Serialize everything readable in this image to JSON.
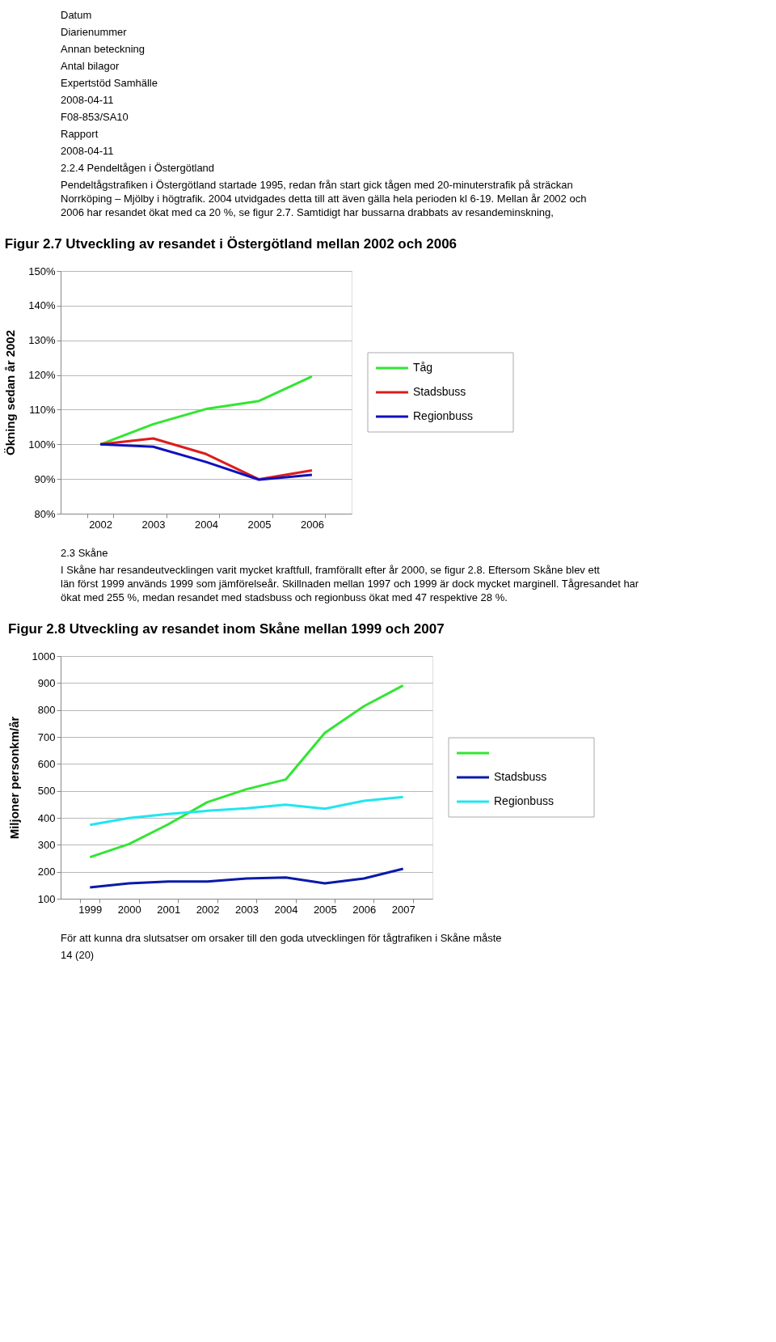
{
  "chart_data": [
    {
      "type": "line",
      "title": "Figur 2.7 Utveckling av resandet i Östergötland mellan 2002 och 2006",
      "annotations": [
        "Datum",
        "Diarienummer",
        "Annan beteckning",
        "Antal bilagor",
        "Expertstöd Samhälle",
        "2008-04-11",
        "F08-853/SA10",
        "Rapport",
        "2008-04-11",
        "2.2.4 Pendeltågen i Östergötland",
        "Pendeltågstrafiken i Östergötland startade 1995, redan från start gick tågen med 20-minuterstrafik på sträckan Norrköping – Mjölby i högtrafik. 2004 utvidgades detta till att även gälla hela perioden kl 6-19. Mellan år 2002 och 2006 har resandet ökat med ca 20 %, se figur 2.7. Samtidigt har bussarna drabbats av resandeminskning,"
      ],
      "ylabel": "Ökning sedan år 2002",
      "categories": [
        "2002",
        "2003",
        "2004",
        "2005",
        "2006"
      ],
      "series": [
        {
          "name": "Tåg",
          "color": "#33e533",
          "values": [
            100,
            105.8,
            110.2,
            112.5,
            119.6
          ]
        },
        {
          "name": "Stadsbuss",
          "color": "#dd1c1c",
          "values": [
            100,
            101.7,
            97.2,
            89.9,
            92.5
          ]
        },
        {
          "name": "Regionbuss",
          "color": "#1010c0",
          "values": [
            100,
            99.3,
            94.9,
            89.8,
            91.2
          ]
        }
      ],
      "ylim": [
        80,
        150
      ],
      "yticks": [
        {
          "value": 80,
          "label": "80%"
        },
        {
          "value": 90,
          "label": "90%"
        },
        {
          "value": 100,
          "label": "100%"
        },
        {
          "value": 110,
          "label": "110%"
        },
        {
          "value": 120,
          "label": "120%"
        },
        {
          "value": 130,
          "label": "130%"
        },
        {
          "value": 140,
          "label": "140%"
        },
        {
          "value": 150,
          "label": "150%"
        }
      ],
      "grid": "y",
      "legend": "right",
      "marker": "none",
      "line_style": "solid"
    },
    {
      "type": "line",
      "title": "Figur 2.8 Utveckling av resandet inom Skåne mellan 1999 och 2007",
      "annotations": [
        "2.3 Skåne",
        "I Skåne har resandeutvecklingen varit mycket kraftfull, framförallt efter år 2000, se figur 2.8. Eftersom Skåne blev ett län först 1999 används 1999 som jämförelseår. Skillnaden mellan 1997 och 1999 är dock mycket marginell. Tågresandet har ökat med 255 %, medan resandet med stadsbuss och regionbuss ökat med 47 respektive 28 %.",
        "För att kunna dra slutsatser om orsaker till den goda utvecklingen för tågtrafiken i Skåne måste",
        "14 (20)"
      ],
      "ylabel": "Miljoner personkm/år",
      "categories": [
        "1999",
        "2000",
        "2001",
        "2002",
        "2003",
        "2004",
        "2005",
        "2006",
        "2007"
      ],
      "series": [
        {
          "color": "#33e533",
          "values": [
            254,
            303,
            376,
            458,
            506,
            542,
            715,
            814,
            891
          ]
        },
        {
          "name": "Stadsbuss",
          "color": "#0a1aa8",
          "values": [
            142,
            157,
            164,
            164,
            175,
            179,
            157,
            175,
            211
          ]
        },
        {
          "name": "Regionbuss",
          "color": "#22e5f0",
          "values": [
            374,
            399,
            414,
            426,
            435,
            449,
            434,
            463,
            477
          ]
        }
      ],
      "ylim": [
        100,
        1000
      ],
      "yticks": [
        100,
        200,
        300,
        400,
        500,
        600,
        700,
        800,
        900,
        1000
      ],
      "grid": "y",
      "legend": "right",
      "marker": "none",
      "line_style": "solid"
    }
  ]
}
